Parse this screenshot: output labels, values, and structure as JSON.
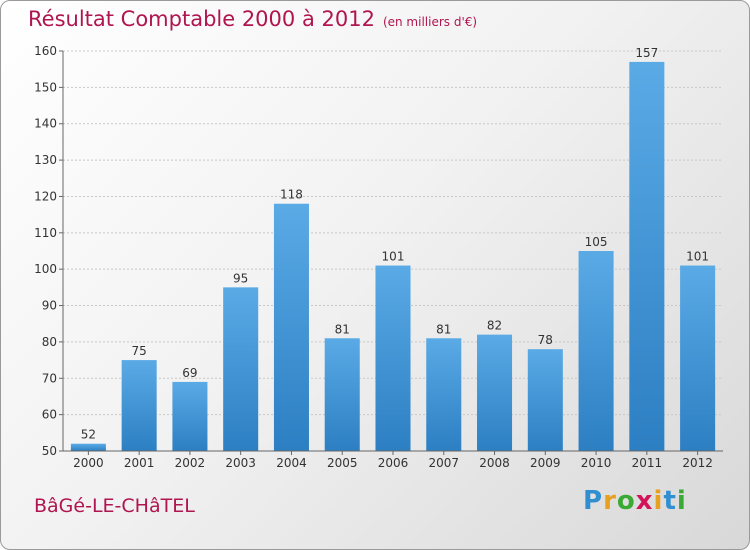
{
  "title": "Résultat Comptable 2000 à 2012",
  "unit": "(en milliers d'€)",
  "commune": "BâGé-LE-CHâTEL",
  "logo": {
    "letters": [
      "P",
      "r",
      "o",
      "x",
      "i",
      "t",
      "i"
    ],
    "colors": [
      "#2f8fd0",
      "#e8a020",
      "#3aaa35",
      "#d4145a",
      "#e8a020",
      "#2f8fd0",
      "#3aaa35"
    ]
  },
  "colors": {
    "bar": "#5aaae6",
    "bar_dark": "#2c7fc2",
    "title": "#b0154f"
  },
  "chart_data": {
    "type": "bar",
    "title": "Résultat Comptable 2000 à 2012",
    "xlabel": "",
    "ylabel": "",
    "categories": [
      "2000",
      "2001",
      "2002",
      "2003",
      "2004",
      "2005",
      "2006",
      "2007",
      "2008",
      "2009",
      "2010",
      "2011",
      "2012"
    ],
    "values": [
      52,
      75,
      69,
      95,
      118,
      81,
      101,
      81,
      82,
      78,
      105,
      157,
      101
    ],
    "ylim": [
      50,
      160
    ],
    "yticks": [
      50,
      60,
      70,
      80,
      90,
      100,
      110,
      120,
      130,
      140,
      150,
      160
    ],
    "grid": true
  }
}
